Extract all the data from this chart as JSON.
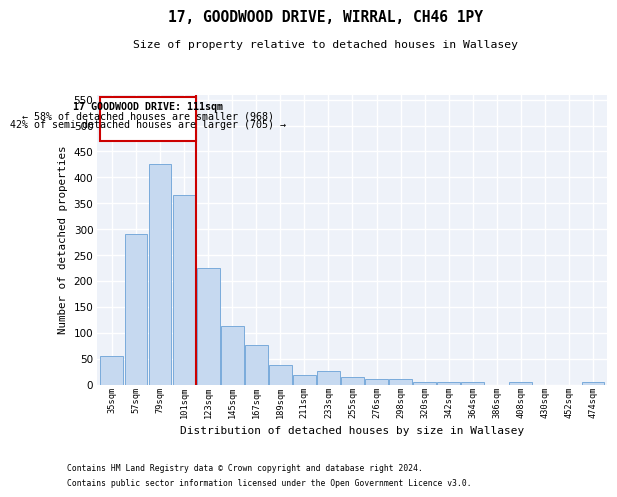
{
  "title": "17, GOODWOOD DRIVE, WIRRAL, CH46 1PY",
  "subtitle": "Size of property relative to detached houses in Wallasey",
  "xlabel": "Distribution of detached houses by size in Wallasey",
  "ylabel": "Number of detached properties",
  "categories": [
    "35sqm",
    "57sqm",
    "79sqm",
    "101sqm",
    "123sqm",
    "145sqm",
    "167sqm",
    "189sqm",
    "211sqm",
    "233sqm",
    "255sqm",
    "276sqm",
    "298sqm",
    "320sqm",
    "342sqm",
    "364sqm",
    "386sqm",
    "408sqm",
    "430sqm",
    "452sqm",
    "474sqm"
  ],
  "values": [
    55,
    290,
    425,
    365,
    225,
    113,
    76,
    38,
    18,
    27,
    14,
    10,
    10,
    5,
    5,
    5,
    0,
    5,
    0,
    0,
    4
  ],
  "bar_color": "#c6d9f0",
  "bar_edge_color": "#7aabdb",
  "red_line_x": 3.5,
  "annotation_text_line1": "17 GOODWOOD DRIVE: 111sqm",
  "annotation_text_line2": "← 58% of detached houses are smaller (968)",
  "annotation_text_line3": "42% of semi-detached houses are larger (705) →",
  "annotation_box_color": "#cc0000",
  "ylim": [
    0,
    560
  ],
  "yticks": [
    0,
    50,
    100,
    150,
    200,
    250,
    300,
    350,
    400,
    450,
    500,
    550
  ],
  "footnote1": "Contains HM Land Registry data © Crown copyright and database right 2024.",
  "footnote2": "Contains public sector information licensed under the Open Government Licence v3.0.",
  "bg_color": "#eef2f9"
}
